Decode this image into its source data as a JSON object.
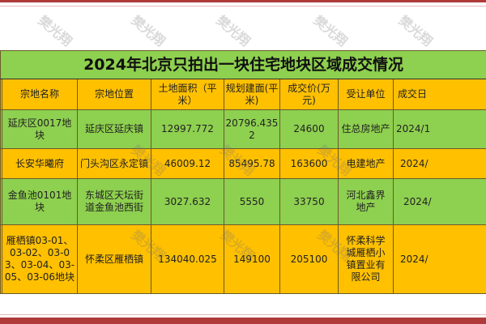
{
  "title": "2024年北京只拍出一块住宅地块区域成交情况",
  "headers": [
    "宗地名称",
    "宗地位置",
    "土地面积（平米）",
    "规划建面(平米)",
    "成交价(万元)",
    "受让单位",
    "成交日"
  ],
  "rows": [
    [
      "延庆区0017地块",
      "延庆区延庆镇",
      "12997.772",
      "20796.4352",
      "24600",
      "住总房地产",
      "2024/1"
    ],
    [
      "长安华曦府",
      "门头沟区永定镇",
      "46009.12",
      "85495.78",
      "163600",
      "电建地产",
      "2024/"
    ],
    [
      "金鱼池0101地块",
      "东城区天坛街道金鱼池西街",
      "3027.632",
      "5550",
      "33750",
      "河北鑫界地产",
      "2024/"
    ],
    [
      "雁栖镇03-01、03-02、03-03、03-04、03-05、03-06地块",
      "怀柔区雁栖镇",
      "134040.025",
      "149100",
      "205100",
      "怀柔科学城雁栖小镇置业有限公司",
      "2024/"
    ]
  ],
  "watermark": "樊光翔",
  "colors": {
    "green": "#8ed04f",
    "orange": "#ffc000",
    "frame": "#b03a3a"
  }
}
